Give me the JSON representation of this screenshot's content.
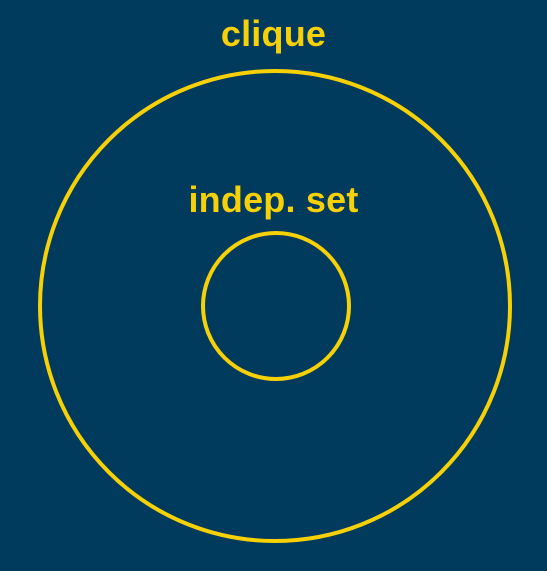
{
  "diagram": {
    "outer_label": "clique",
    "inner_label": "indep. set"
  },
  "colors": {
    "background": "#003a5c",
    "accent": "#f7d106"
  }
}
